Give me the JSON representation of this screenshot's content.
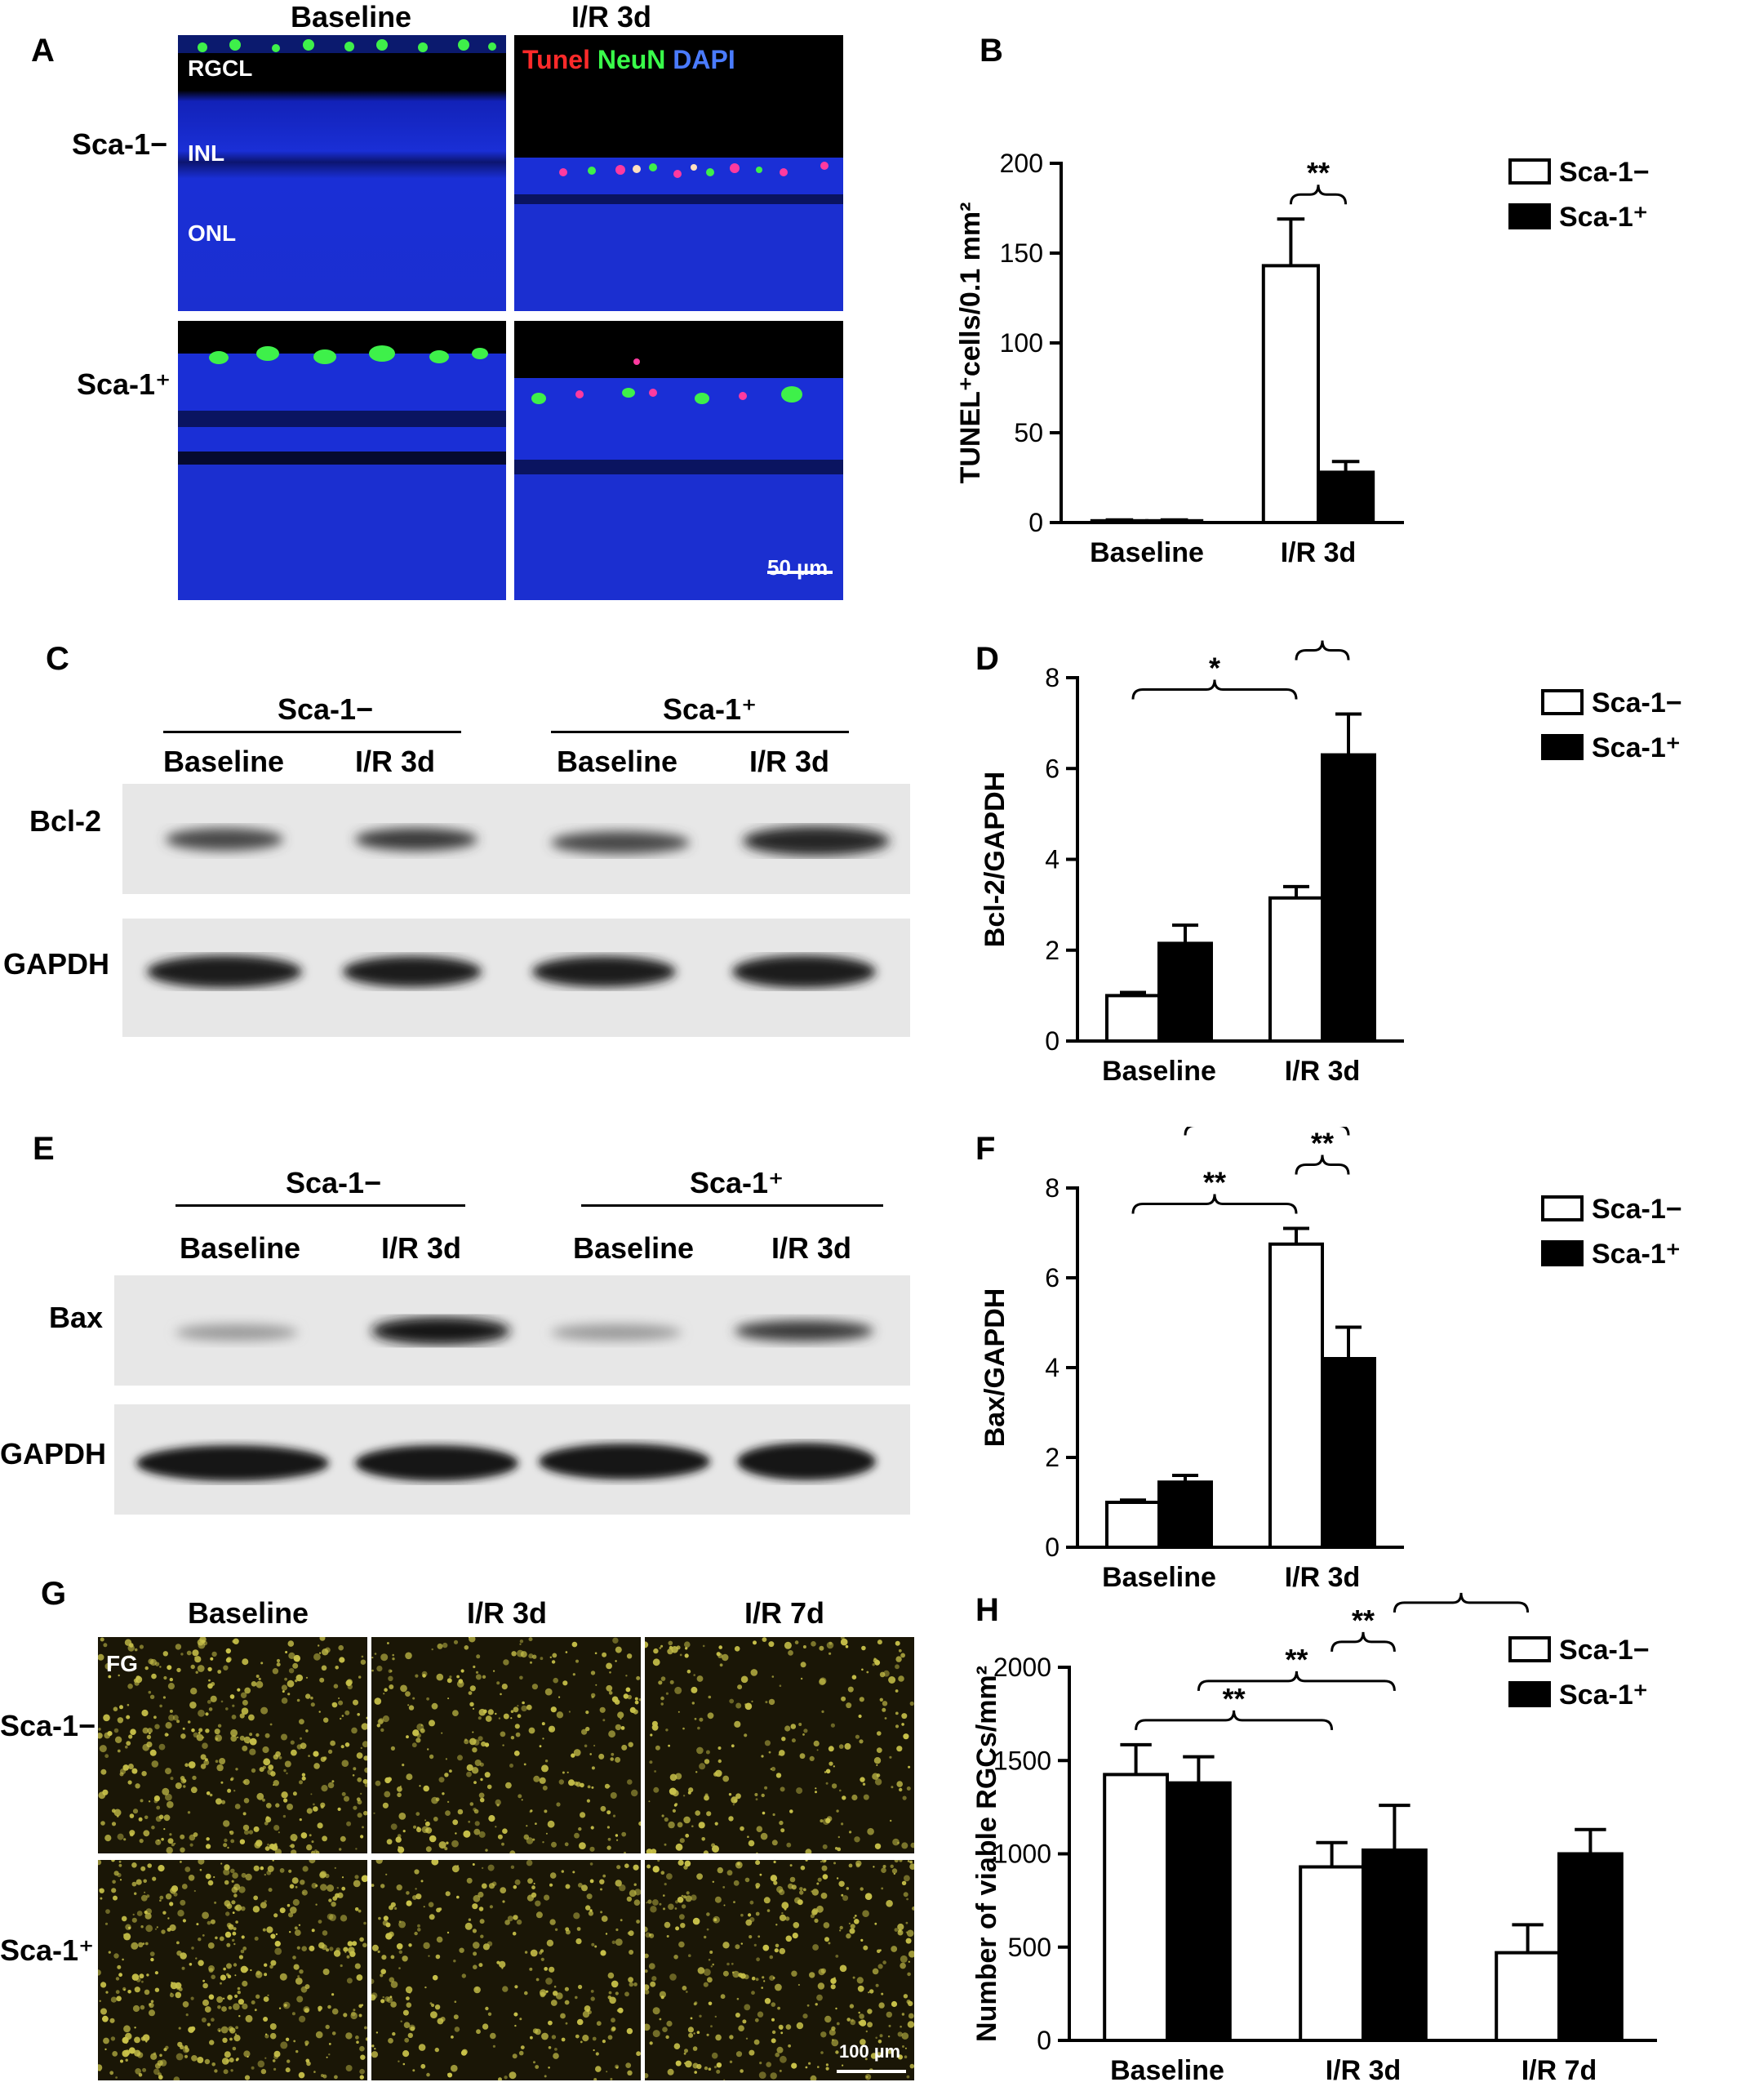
{
  "panels": {
    "A": {
      "letter": "A",
      "col_headers": [
        "Baseline",
        "I/R 3d"
      ],
      "row_labels": [
        "Sca-1−",
        "Sca-1⁺"
      ],
      "layer_labels": [
        "RGCL",
        "INL",
        "ONL"
      ],
      "stain_labels": [
        {
          "text": "Tunel",
          "color": "#ff2a2a"
        },
        {
          "text": "NeuN",
          "color": "#39ff4a"
        },
        {
          "text": "DAPI",
          "color": "#4a7bff"
        }
      ],
      "scale_bar": "50 µm"
    },
    "B": {
      "letter": "B"
    },
    "C": {
      "letter": "C",
      "group_labels": [
        "Sca-1−",
        "Sca-1⁺"
      ],
      "lane_labels": [
        "Baseline",
        "I/R 3d",
        "Baseline",
        "I/R 3d"
      ],
      "row_labels": [
        "Bcl-2",
        "GAPDH"
      ]
    },
    "D": {
      "letter": "D"
    },
    "E": {
      "letter": "E",
      "group_labels": [
        "Sca-1−",
        "Sca-1⁺"
      ],
      "lane_labels": [
        "Baseline",
        "I/R 3d",
        "Baseline",
        "I/R 3d"
      ],
      "row_labels": [
        "Bax",
        "GAPDH"
      ]
    },
    "F": {
      "letter": "F"
    },
    "G": {
      "letter": "G",
      "col_headers": [
        "Baseline",
        "I/R 3d",
        "I/R 7d"
      ],
      "row_labels": [
        "Sca-1−",
        "Sca-1⁺"
      ],
      "stain_label": "FG",
      "scale_bar": "100 µm"
    },
    "H": {
      "letter": "H"
    }
  },
  "colors": {
    "open_bar": "#ffffff",
    "filled_bar": "#000000",
    "dapi_blue": "#1a2fd6",
    "fg_yellow": "#c9c24a"
  },
  "chart_data": [
    {
      "id": "B",
      "type": "bar",
      "categories": [
        "Baseline",
        "I/R 3d"
      ],
      "series": [
        {
          "name": "Sca-1−",
          "values": [
            1,
            143
          ],
          "errors": [
            0.5,
            26
          ]
        },
        {
          "name": "Sca-1⁺",
          "values": [
            1,
            28
          ],
          "errors": [
            0.5,
            6
          ]
        }
      ],
      "ylabel": "TUNEL⁺cells/0.1 mm²",
      "ylim": [
        0,
        200
      ],
      "yticks": [
        0,
        50,
        100,
        150,
        200
      ],
      "legend": "top-right",
      "annotations": [
        {
          "text": "**",
          "between": "I/R 3d Sca-1− vs I/R 3d Sca-1⁺"
        }
      ]
    },
    {
      "id": "D",
      "type": "bar",
      "categories": [
        "Baseline",
        "I/R 3d"
      ],
      "series": [
        {
          "name": "Sca-1−",
          "values": [
            1.0,
            3.15
          ],
          "errors": [
            0.07,
            0.25
          ]
        },
        {
          "name": "Sca-1⁺",
          "values": [
            2.15,
            6.3
          ],
          "errors": [
            0.4,
            0.9
          ]
        }
      ],
      "ylabel": "Bcl-2/GAPDH",
      "ylim": [
        0,
        8
      ],
      "yticks": [
        0,
        2,
        4,
        6,
        8
      ],
      "legend": "top-right",
      "annotations": [
        {
          "text": "*",
          "between": "Baseline Sca-1− vs I/R 3d Sca-1−"
        },
        {
          "text": "**",
          "between": "I/R 3d Sca-1− vs I/R 3d Sca-1⁺"
        },
        {
          "text": "**",
          "between": "Baseline Sca-1⁺ vs I/R 3d Sca-1⁺"
        }
      ]
    },
    {
      "id": "F",
      "type": "bar",
      "categories": [
        "Baseline",
        "I/R 3d"
      ],
      "series": [
        {
          "name": "Sca-1−",
          "values": [
            1.0,
            6.75
          ],
          "errors": [
            0.05,
            0.35
          ]
        },
        {
          "name": "Sca-1⁺",
          "values": [
            1.45,
            4.2
          ],
          "errors": [
            0.15,
            0.7
          ]
        }
      ],
      "ylabel": "Bax/GAPDH",
      "ylim": [
        0,
        8
      ],
      "yticks": [
        0,
        2,
        4,
        6,
        8
      ],
      "legend": "top-right",
      "annotations": [
        {
          "text": "**",
          "between": "Baseline Sca-1− vs I/R 3d Sca-1−"
        },
        {
          "text": "**",
          "between": "I/R 3d Sca-1− vs I/R 3d Sca-1⁺"
        },
        {
          "text": "*",
          "between": "Baseline Sca-1⁺ vs I/R 3d Sca-1⁺"
        }
      ]
    },
    {
      "id": "H",
      "type": "bar",
      "categories": [
        "Baseline",
        "I/R 3d",
        "I/R 7d"
      ],
      "series": [
        {
          "name": "Sca-1−",
          "values": [
            1425,
            930,
            470
          ],
          "errors": [
            160,
            130,
            150
          ]
        },
        {
          "name": "Sca-1⁺",
          "values": [
            1380,
            1020,
            1000
          ],
          "errors": [
            140,
            240,
            130
          ]
        }
      ],
      "ylabel": "Number of viable RGCs/mm²",
      "ylim": [
        0,
        2000
      ],
      "yticks": [
        0,
        500,
        1000,
        1500,
        2000
      ],
      "legend": "top-right",
      "annotations": [
        {
          "text": "**",
          "between": "Baseline Sca-1− vs I/R 3d Sca-1−"
        },
        {
          "text": "**",
          "between": "Baseline Sca-1⁺ vs I/R 3d Sca-1⁺"
        },
        {
          "text": "**",
          "between": "I/R 3d Sca-1− vs I/R 3d Sca-1⁺"
        },
        {
          "text": "**",
          "between": "I/R 3d Sca-1⁺ vs I/R 7d Sca-1−"
        },
        {
          "text": "**",
          "between": "I/R 7d Sca-1− vs I/R 7d Sca-1⁺"
        }
      ]
    }
  ]
}
